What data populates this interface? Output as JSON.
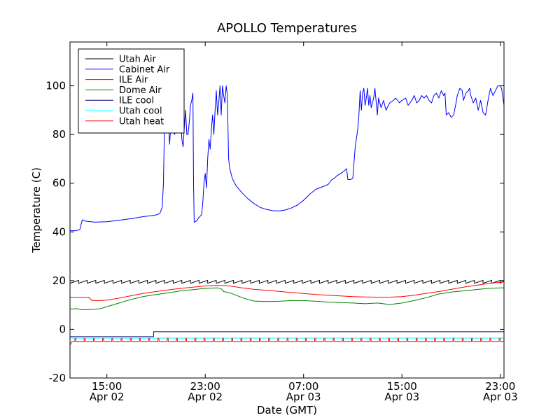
{
  "chart_data": {
    "type": "line",
    "title": "APOLLO Temperatures",
    "xlabel": "Date (GMT)",
    "ylabel": "Temperature (C)",
    "xlim": [
      12,
      47.3
    ],
    "ylim": [
      -20,
      118
    ],
    "yticks": [
      -20,
      0,
      20,
      40,
      60,
      80,
      100
    ],
    "xticks": [
      {
        "x": 15,
        "line1": "15:00",
        "line2": "Apr 02"
      },
      {
        "x": 23,
        "line1": "23:00",
        "line2": "Apr 02"
      },
      {
        "x": 31,
        "line1": "07:00",
        "line2": "Apr 03"
      },
      {
        "x": 39,
        "line1": "15:00",
        "line2": "Apr 03"
      },
      {
        "x": 47,
        "line1": "23:00",
        "line2": "Apr 03"
      }
    ],
    "legend_position": "upper-left",
    "series": [
      {
        "name": "Utah Air",
        "color": "#000000",
        "pattern": "sawtooth",
        "points": [
          [
            12,
            19.5
          ],
          [
            47.3,
            19.5
          ]
        ],
        "sawtooth_period": 0.7,
        "sawtooth_amp": 1.2
      },
      {
        "name": "Cabinet Air",
        "color": "#0000ff",
        "points": [
          [
            12,
            40.5
          ],
          [
            12.5,
            40.5
          ],
          [
            12.8,
            41
          ],
          [
            13,
            45
          ],
          [
            13.2,
            44.5
          ],
          [
            14,
            44
          ],
          [
            15,
            44.2
          ],
          [
            16,
            44.8
          ],
          [
            17,
            45.5
          ],
          [
            18,
            46.3
          ],
          [
            18.8,
            46.8
          ],
          [
            19,
            47
          ],
          [
            19.3,
            47.5
          ],
          [
            19.5,
            50
          ],
          [
            19.6,
            60
          ],
          [
            19.7,
            88
          ],
          [
            19.8,
            96
          ],
          [
            20,
            85
          ],
          [
            20.1,
            76
          ],
          [
            20.3,
            92
          ],
          [
            20.5,
            80
          ],
          [
            20.6,
            82
          ],
          [
            20.7,
            92
          ],
          [
            20.8,
            84
          ],
          [
            20.9,
            85
          ],
          [
            21,
            88
          ],
          [
            21.1,
            78
          ],
          [
            21.2,
            75
          ],
          [
            21.3,
            83
          ],
          [
            21.4,
            90
          ],
          [
            21.5,
            80
          ],
          [
            21.6,
            80
          ],
          [
            21.7,
            85
          ],
          [
            21.8,
            92
          ],
          [
            21.9,
            94
          ],
          [
            22,
            97
          ],
          [
            22.05,
            60
          ],
          [
            22.1,
            44
          ],
          [
            22.3,
            44.5
          ],
          [
            22.5,
            46
          ],
          [
            22.7,
            47
          ],
          [
            22.8,
            52
          ],
          [
            22.9,
            60
          ],
          [
            23,
            64
          ],
          [
            23.1,
            58
          ],
          [
            23.2,
            70
          ],
          [
            23.3,
            78
          ],
          [
            23.4,
            74
          ],
          [
            23.5,
            82
          ],
          [
            23.6,
            88
          ],
          [
            23.7,
            80
          ],
          [
            23.8,
            90
          ],
          [
            23.9,
            98
          ],
          [
            24,
            88
          ],
          [
            24.1,
            93
          ],
          [
            24.2,
            100
          ],
          [
            24.3,
            88
          ],
          [
            24.4,
            100
          ],
          [
            24.5,
            96
          ],
          [
            24.6,
            93
          ],
          [
            24.7,
            100
          ],
          [
            24.8,
            96
          ],
          [
            24.9,
            70
          ],
          [
            25,
            66
          ],
          [
            25.2,
            62
          ],
          [
            25.5,
            59
          ],
          [
            26,
            56
          ],
          [
            26.5,
            53.5
          ],
          [
            27,
            51.5
          ],
          [
            27.5,
            50
          ],
          [
            28,
            49.2
          ],
          [
            28.5,
            48.7
          ],
          [
            29,
            48.6
          ],
          [
            29.5,
            49
          ],
          [
            30,
            49.8
          ],
          [
            30.5,
            51
          ],
          [
            31,
            53
          ],
          [
            31.5,
            55.5
          ],
          [
            32,
            57.5
          ],
          [
            32.5,
            58.5
          ],
          [
            33,
            59.5
          ],
          [
            33.3,
            61.5
          ],
          [
            33.5,
            62
          ],
          [
            33.7,
            63
          ],
          [
            34,
            64
          ],
          [
            34.3,
            65
          ],
          [
            34.5,
            66
          ],
          [
            34.6,
            61.5
          ],
          [
            34.8,
            61.5
          ],
          [
            35,
            62
          ],
          [
            35.2,
            75
          ],
          [
            35.4,
            82
          ],
          [
            35.5,
            88
          ],
          [
            35.6,
            98
          ],
          [
            35.7,
            90
          ],
          [
            35.8,
            97
          ],
          [
            35.9,
            99
          ],
          [
            36,
            92
          ],
          [
            36.1,
            95
          ],
          [
            36.2,
            99
          ],
          [
            36.3,
            92
          ],
          [
            36.4,
            96
          ],
          [
            36.5,
            91
          ],
          [
            36.7,
            95
          ],
          [
            36.8,
            99
          ],
          [
            37,
            88
          ],
          [
            37.1,
            95
          ],
          [
            37.3,
            91
          ],
          [
            37.5,
            94
          ],
          [
            37.7,
            90
          ],
          [
            38,
            93
          ],
          [
            38.3,
            94
          ],
          [
            38.5,
            95
          ],
          [
            38.8,
            93
          ],
          [
            39,
            94
          ],
          [
            39.3,
            95
          ],
          [
            39.5,
            92
          ],
          [
            39.8,
            94
          ],
          [
            40,
            96
          ],
          [
            40.2,
            93
          ],
          [
            40.4,
            94
          ],
          [
            40.6,
            96
          ],
          [
            40.8,
            95
          ],
          [
            41,
            96
          ],
          [
            41.2,
            94
          ],
          [
            41.4,
            93
          ],
          [
            41.6,
            96
          ],
          [
            41.8,
            97
          ],
          [
            42,
            95
          ],
          [
            42.2,
            98
          ],
          [
            42.4,
            96
          ],
          [
            42.5,
            97
          ],
          [
            42.6,
            88
          ],
          [
            42.8,
            89
          ],
          [
            43,
            87
          ],
          [
            43.2,
            88
          ],
          [
            43.4,
            93
          ],
          [
            43.5,
            96
          ],
          [
            43.7,
            99
          ],
          [
            43.9,
            98
          ],
          [
            44,
            94
          ],
          [
            44.2,
            97
          ],
          [
            44.4,
            98
          ],
          [
            44.5,
            99
          ],
          [
            44.6,
            96
          ],
          [
            44.8,
            93
          ],
          [
            45,
            95
          ],
          [
            45.2,
            90
          ],
          [
            45.4,
            94
          ],
          [
            45.6,
            89
          ],
          [
            45.8,
            88
          ],
          [
            46,
            94
          ],
          [
            46.2,
            99
          ],
          [
            46.4,
            96
          ],
          [
            46.6,
            98
          ],
          [
            46.8,
            100
          ],
          [
            47,
            100
          ],
          [
            47.1,
            99
          ],
          [
            47.3,
            92
          ]
        ]
      },
      {
        "name": "ILE Air",
        "color": "#ff0000",
        "points": [
          [
            12,
            13.2
          ],
          [
            13,
            13
          ],
          [
            13.5,
            13.2
          ],
          [
            13.8,
            11.8
          ],
          [
            14.5,
            11.8
          ],
          [
            15,
            12
          ],
          [
            16,
            12.8
          ],
          [
            17,
            13.8
          ],
          [
            18,
            14.8
          ],
          [
            19,
            15.5
          ],
          [
            20,
            16.2
          ],
          [
            21,
            16.8
          ],
          [
            22,
            17.3
          ],
          [
            23,
            17.8
          ],
          [
            24,
            18
          ],
          [
            25,
            17.8
          ],
          [
            26,
            17
          ],
          [
            27,
            16.4
          ],
          [
            28,
            16
          ],
          [
            29,
            15.6
          ],
          [
            30,
            15.1
          ],
          [
            31,
            14.7
          ],
          [
            32,
            14.3
          ],
          [
            33,
            14
          ],
          [
            34,
            13.7
          ],
          [
            35,
            13.4
          ],
          [
            36,
            13.3
          ],
          [
            37,
            13.2
          ],
          [
            38,
            13.2
          ],
          [
            39,
            13.4
          ],
          [
            40,
            14
          ],
          [
            41,
            14.8
          ],
          [
            42,
            15.5
          ],
          [
            43,
            16.4
          ],
          [
            44,
            17.3
          ],
          [
            45,
            18
          ],
          [
            46,
            18.8
          ],
          [
            47,
            19.3
          ],
          [
            47.3,
            19.5
          ]
        ]
      },
      {
        "name": "Dome Air",
        "color": "#008000",
        "points": [
          [
            12,
            8.3
          ],
          [
            12.5,
            8.5
          ],
          [
            13,
            8
          ],
          [
            14,
            8.2
          ],
          [
            14.5,
            8.5
          ],
          [
            15,
            9.3
          ],
          [
            16,
            10.8
          ],
          [
            17,
            12.3
          ],
          [
            18,
            13.5
          ],
          [
            19,
            14.3
          ],
          [
            20,
            15
          ],
          [
            21,
            15.8
          ],
          [
            22,
            16.3
          ],
          [
            23,
            16.8
          ],
          [
            24,
            17
          ],
          [
            24.3,
            16.6
          ],
          [
            24.5,
            15.5
          ],
          [
            25,
            15
          ],
          [
            25.5,
            14
          ],
          [
            26,
            13
          ],
          [
            26.5,
            12.2
          ],
          [
            27,
            11.6
          ],
          [
            28,
            11.4
          ],
          [
            29,
            11.5
          ],
          [
            30,
            11.8
          ],
          [
            31,
            11.8
          ],
          [
            32,
            11.5
          ],
          [
            33,
            11.2
          ],
          [
            34,
            11
          ],
          [
            35,
            10.8
          ],
          [
            36,
            10.5
          ],
          [
            37,
            10.8
          ],
          [
            38,
            10.2
          ],
          [
            39,
            10.8
          ],
          [
            40,
            11.8
          ],
          [
            41,
            13
          ],
          [
            42,
            14.5
          ],
          [
            43,
            15.3
          ],
          [
            44,
            15.8
          ],
          [
            45,
            16.3
          ],
          [
            46,
            16.8
          ],
          [
            47,
            17
          ],
          [
            47.3,
            17
          ]
        ]
      },
      {
        "name": "ILE cool",
        "color": "#000080",
        "points": [
          [
            12,
            -3
          ],
          [
            18.8,
            -3
          ],
          [
            18.8,
            -1
          ],
          [
            47.3,
            -1
          ]
        ]
      },
      {
        "name": "Utah cool",
        "color": "#00ffff",
        "points": [
          [
            12,
            -3.6
          ],
          [
            47.3,
            -3.6
          ]
        ]
      },
      {
        "name": "Utah heat",
        "color": "#ff0000",
        "pattern": "pulses",
        "points": [
          [
            12,
            -5
          ],
          [
            47.3,
            -5
          ]
        ],
        "pulse_start": 12.4,
        "pulse_period": 0.75,
        "pulse_height": 1.2
      }
    ]
  }
}
